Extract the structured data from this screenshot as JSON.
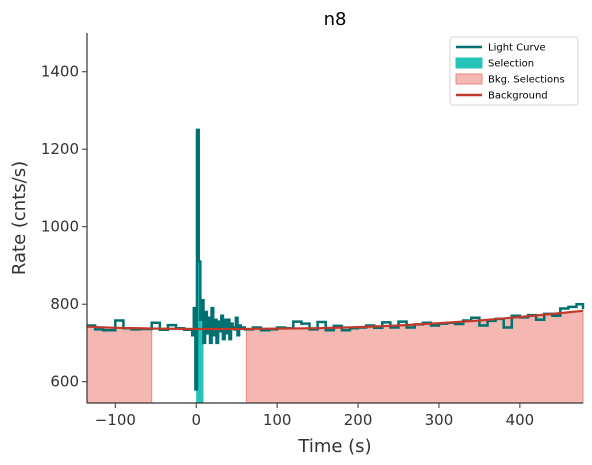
{
  "chart_data": {
    "type": "line",
    "title": "n8",
    "xlabel": "Time (s)",
    "ylabel": "Rate (cnts/s)",
    "xlim": [
      -135,
      478
    ],
    "ylim": [
      545,
      1500
    ],
    "xticks": [
      -100,
      0,
      100,
      200,
      300,
      400
    ],
    "yticks": [
      600,
      800,
      1000,
      1200,
      1400
    ],
    "grid": false,
    "legend_position": "top-right",
    "colors": {
      "light_curve": "#007070",
      "selection": "#26c4b8",
      "bkg_selection_fill": "#f5b7b1",
      "bkg_selection_edge": "#ec8a80",
      "background": "#c0392b"
    },
    "legend": [
      {
        "key": "light_curve",
        "label": "Light Curve",
        "kind": "line"
      },
      {
        "key": "selection",
        "label": "Selection",
        "kind": "patch"
      },
      {
        "key": "bkg_selection",
        "label": "Bkg. Selections",
        "kind": "patch"
      },
      {
        "key": "background",
        "label": "Background",
        "kind": "line"
      }
    ],
    "selection": [
      [
        0,
        9
      ]
    ],
    "bkg_selections": [
      [
        -135,
        -55
      ],
      [
        62,
        478
      ]
    ],
    "background": {
      "x": [
        -135,
        -100,
        -50,
        0,
        50,
        100,
        150,
        200,
        250,
        300,
        350,
        400,
        450,
        478
      ],
      "y": [
        742,
        739,
        737,
        736,
        736,
        737,
        738,
        741,
        745,
        751,
        758,
        767,
        777,
        783
      ]
    },
    "light_curve": {
      "edges": [
        -135,
        -125,
        -115,
        -100,
        -90,
        -80,
        -70,
        -55,
        -45,
        -35,
        -25,
        -15,
        -5,
        -3,
        -1,
        1,
        3,
        5,
        7,
        9,
        11,
        13,
        15,
        17,
        19,
        21,
        23,
        25,
        27,
        29,
        31,
        33,
        35,
        37,
        39,
        41,
        43,
        45,
        47,
        49,
        51,
        53,
        55,
        60,
        70,
        80,
        90,
        100,
        110,
        120,
        130,
        140,
        150,
        160,
        170,
        180,
        190,
        200,
        210,
        220,
        230,
        240,
        250,
        260,
        270,
        280,
        290,
        300,
        310,
        320,
        330,
        340,
        350,
        360,
        370,
        380,
        390,
        400,
        410,
        420,
        430,
        440,
        450,
        460,
        470,
        478
      ],
      "rates": [
        745,
        735,
        733,
        758,
        738,
        735,
        736,
        752,
        734,
        746,
        738,
        734,
        720,
        790,
        580,
        1250,
        910,
        760,
        810,
        700,
        780,
        725,
        765,
        700,
        790,
        720,
        760,
        700,
        755,
        730,
        770,
        710,
        760,
        725,
        760,
        710,
        750,
        740,
        735,
        765,
        720,
        745,
        740,
        735,
        740,
        733,
        735,
        740,
        738,
        755,
        750,
        735,
        754,
        733,
        744,
        733,
        738,
        740,
        745,
        739,
        753,
        740,
        755,
        740,
        748,
        752,
        745,
        750,
        752,
        749,
        758,
        765,
        745,
        757,
        762,
        740,
        770,
        766,
        772,
        760,
        775,
        770,
        789,
        793,
        800,
        787
      ]
    }
  }
}
